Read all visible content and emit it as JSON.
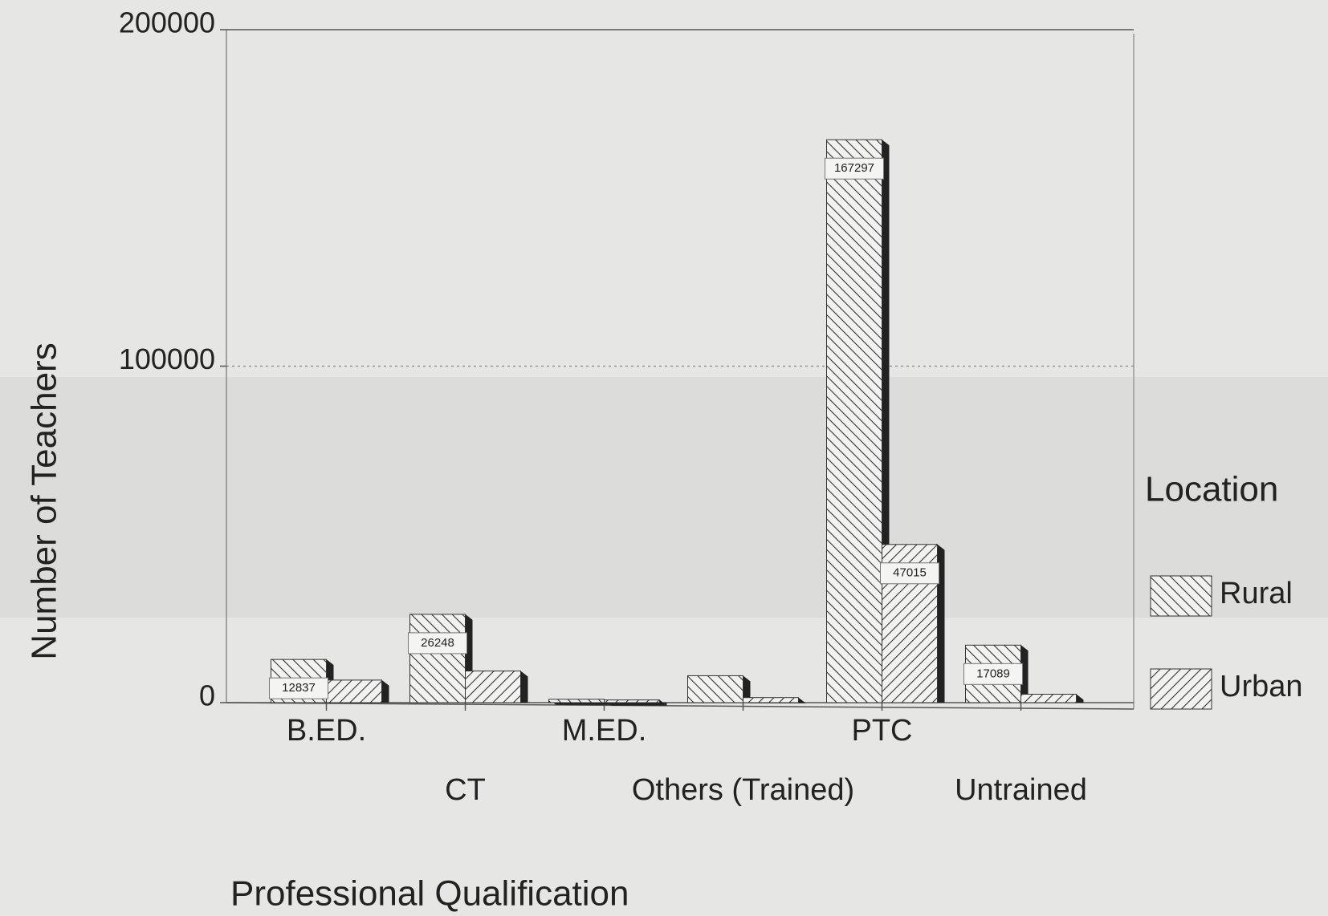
{
  "chart_data": {
    "type": "bar",
    "x_label": "Professional Qualification",
    "y_label": "Number of Teachers",
    "categories": [
      "B.ED.",
      "CT",
      "M.ED.",
      "Others (Trained)",
      "PTC",
      "Untrained"
    ],
    "series": [
      {
        "name": "Rural",
        "color": "#333333",
        "hatch": "backslash",
        "values": [
          12837,
          26248,
          1000,
          8000,
          167297,
          17089
        ],
        "value_labels": [
          "12837",
          "26248",
          null,
          null,
          "167297",
          "17089"
        ]
      },
      {
        "name": "Urban",
        "color": "#333333",
        "hatch": "slash",
        "values": [
          6700,
          9400,
          800,
          1500,
          47015,
          2500
        ],
        "value_labels": [
          null,
          null,
          null,
          null,
          "47015",
          null
        ]
      }
    ],
    "ylim": [
      0,
      200000
    ],
    "yticks": [
      0,
      100000,
      200000
    ],
    "grid": true,
    "legend": {
      "title": "Location",
      "position": "right"
    }
  }
}
